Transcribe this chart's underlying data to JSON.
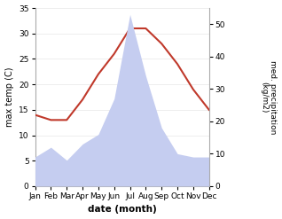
{
  "months": [
    "Jan",
    "Feb",
    "Mar",
    "Apr",
    "May",
    "Jun",
    "Jul",
    "Aug",
    "Sep",
    "Oct",
    "Nov",
    "Dec"
  ],
  "temp": [
    14,
    13,
    13,
    17,
    22,
    26,
    31,
    31,
    28,
    24,
    19,
    15
  ],
  "precip": [
    9,
    12,
    8,
    13,
    16,
    27,
    53,
    34,
    18,
    10,
    9,
    9
  ],
  "temp_color": "#c0392b",
  "precip_fill_color": "#c5cdf0",
  "ylim_temp": [
    0,
    35
  ],
  "ylim_precip": [
    0,
    55
  ],
  "yticks_temp": [
    0,
    5,
    10,
    15,
    20,
    25,
    30,
    35
  ],
  "yticks_precip": [
    0,
    10,
    20,
    30,
    40,
    50
  ],
  "xlabel": "date (month)",
  "ylabel_left": "max temp (C)",
  "ylabel_right": "med. precipitation\n(kg/m2)",
  "bg_color": "#ffffff",
  "grid_color": "#e8e8e8",
  "spine_color": "#aaaaaa"
}
